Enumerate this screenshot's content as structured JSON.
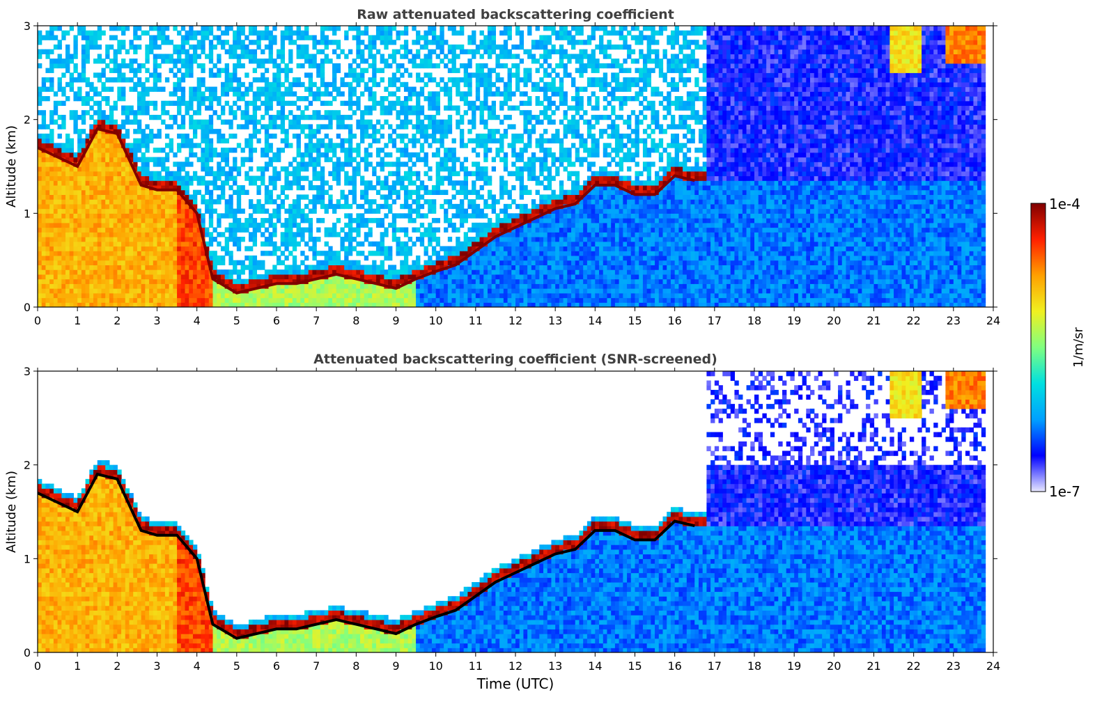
{
  "chart_data": [
    {
      "type": "heatmap",
      "title": "Raw attenuated backscattering coefficient",
      "xlabel": "",
      "ylabel": "Altitude (km)",
      "xlim": [
        0,
        24
      ],
      "ylim": [
        0,
        3
      ],
      "x_ticks": [
        "0",
        "1",
        "2",
        "3",
        "4",
        "5",
        "6",
        "7",
        "8",
        "9",
        "10",
        "11",
        "12",
        "13",
        "14",
        "15",
        "16",
        "17",
        "18",
        "19",
        "20",
        "21",
        "22",
        "23",
        "24"
      ],
      "y_ticks": [
        "0",
        "1",
        "2",
        "3"
      ],
      "data_end_hour": 23.75,
      "screened": false,
      "boundary_layer_top_km": [
        [
          0.0,
          1.7
        ],
        [
          0.5,
          1.6
        ],
        [
          1.0,
          1.5
        ],
        [
          1.5,
          1.9
        ],
        [
          2.0,
          1.85
        ],
        [
          2.6,
          1.3
        ],
        [
          3.0,
          1.25
        ],
        [
          3.5,
          1.25
        ],
        [
          4.0,
          1.0
        ],
        [
          4.4,
          0.3
        ],
        [
          5.0,
          0.15
        ],
        [
          5.5,
          0.2
        ],
        [
          6.0,
          0.25
        ],
        [
          6.5,
          0.25
        ],
        [
          7.0,
          0.3
        ],
        [
          7.5,
          0.35
        ],
        [
          8.0,
          0.3
        ],
        [
          8.5,
          0.25
        ],
        [
          9.0,
          0.2
        ],
        [
          9.5,
          0.3
        ],
        [
          10.0,
          0.38
        ],
        [
          10.5,
          0.45
        ],
        [
          11.0,
          0.6
        ],
        [
          11.5,
          0.75
        ],
        [
          12.0,
          0.85
        ],
        [
          12.5,
          0.95
        ],
        [
          13.0,
          1.05
        ],
        [
          13.5,
          1.1
        ],
        [
          14.0,
          1.3
        ],
        [
          14.5,
          1.3
        ],
        [
          15.0,
          1.2
        ],
        [
          15.5,
          1.2
        ],
        [
          16.0,
          1.4
        ],
        [
          16.5,
          1.35
        ]
      ]
    },
    {
      "type": "heatmap",
      "title": "Attenuated backscattering coefficient (SNR-screened)",
      "xlabel": "Time (UTC)",
      "ylabel": "Altitude (km)",
      "xlim": [
        0,
        24
      ],
      "ylim": [
        0,
        3
      ],
      "x_ticks": [
        "0",
        "1",
        "2",
        "3",
        "4",
        "5",
        "6",
        "7",
        "8",
        "9",
        "10",
        "11",
        "12",
        "13",
        "14",
        "15",
        "16",
        "17",
        "18",
        "19",
        "20",
        "21",
        "22",
        "23",
        "24"
      ],
      "y_ticks": [
        "0",
        "1",
        "2",
        "3"
      ],
      "data_end_hour": 23.75,
      "screened": true,
      "boundary_layer_top_km": [
        [
          0.0,
          1.7
        ],
        [
          0.5,
          1.6
        ],
        [
          1.0,
          1.5
        ],
        [
          1.5,
          1.9
        ],
        [
          2.0,
          1.85
        ],
        [
          2.6,
          1.3
        ],
        [
          3.0,
          1.25
        ],
        [
          3.5,
          1.25
        ],
        [
          4.0,
          1.0
        ],
        [
          4.4,
          0.3
        ],
        [
          5.0,
          0.15
        ],
        [
          5.5,
          0.2
        ],
        [
          6.0,
          0.25
        ],
        [
          6.5,
          0.25
        ],
        [
          7.0,
          0.3
        ],
        [
          7.5,
          0.35
        ],
        [
          8.0,
          0.3
        ],
        [
          8.5,
          0.25
        ],
        [
          9.0,
          0.2
        ],
        [
          9.5,
          0.3
        ],
        [
          10.0,
          0.38
        ],
        [
          10.5,
          0.45
        ],
        [
          11.0,
          0.6
        ],
        [
          11.5,
          0.75
        ],
        [
          12.0,
          0.85
        ],
        [
          12.5,
          0.95
        ],
        [
          13.0,
          1.05
        ],
        [
          13.5,
          1.1
        ],
        [
          14.0,
          1.3
        ],
        [
          14.5,
          1.3
        ],
        [
          15.0,
          1.2
        ],
        [
          15.5,
          1.2
        ],
        [
          16.0,
          1.4
        ],
        [
          16.5,
          1.35
        ]
      ]
    }
  ],
  "colorbar": {
    "label": "1/m/sr",
    "max_label": "1e-4",
    "min_label": "1e-7",
    "scale": "log",
    "colormap": [
      "#e8e8ff",
      "#0000ff",
      "#00a0ff",
      "#00e0e0",
      "#80ff80",
      "#f0f020",
      "#ffa000",
      "#ff2000",
      "#800000"
    ]
  },
  "colors": {
    "title": "#404040",
    "axis": "#000000",
    "background": "#ffffff"
  }
}
